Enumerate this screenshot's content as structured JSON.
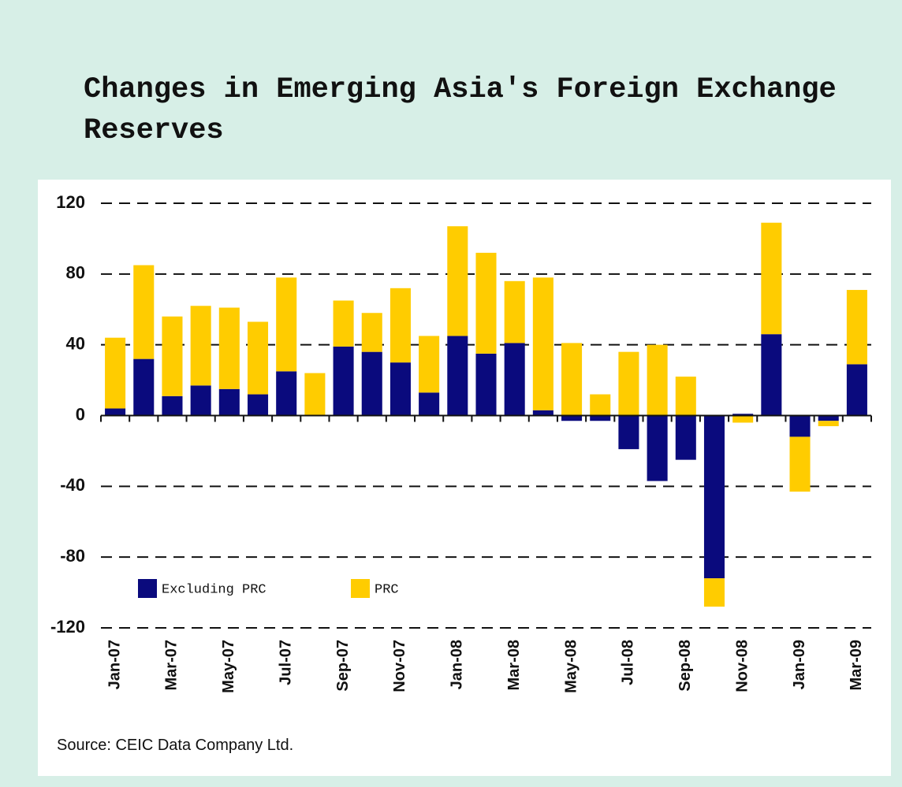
{
  "chart_data": {
    "type": "stacked-bar",
    "title": "Changes in Emerging Asia's Foreign Exchange Reserves",
    "source": "Source: CEIC Data Company Ltd.",
    "categories": [
      "Jan-07",
      null,
      "Mar-07",
      null,
      "May-07",
      null,
      "Jul-07",
      null,
      "Sep-07",
      null,
      "Nov-07",
      null,
      "Jan-08",
      null,
      "Mar-08",
      null,
      "May-08",
      null,
      "Jul-08",
      null,
      "Sep-08",
      null,
      "Nov-08",
      null,
      "Jan-09",
      null,
      "Mar-09"
    ],
    "series": [
      {
        "name": "Excluding PRC",
        "color": "#0a0a7d",
        "values": [
          4,
          32,
          11,
          17,
          15,
          12,
          25,
          0,
          39,
          36,
          30,
          13,
          45,
          35,
          41,
          3,
          -3,
          -3,
          -19,
          -37,
          -25,
          -92,
          1,
          46,
          -12,
          -3,
          29
        ]
      },
      {
        "name": "PRC",
        "color": "#ffcc00",
        "values": [
          40,
          53,
          45,
          45,
          46,
          41,
          53,
          24,
          26,
          22,
          42,
          32,
          62,
          57,
          35,
          75,
          41,
          12,
          36,
          40,
          22,
          -16,
          -4,
          63,
          -31,
          -3,
          42
        ]
      }
    ],
    "ylim": [
      -120,
      120
    ],
    "yticks": [
      -120,
      -80,
      -40,
      0,
      40,
      80,
      120
    ],
    "grid": true
  }
}
